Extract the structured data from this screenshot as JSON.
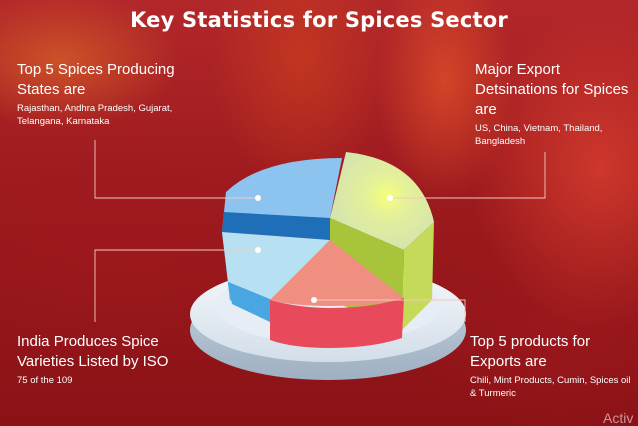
{
  "title": "Key Statistics for Spices Sector",
  "top_left": {
    "heading": "Top 5 Spices Producing States are",
    "detail": "Rajasthan, Andhra Pradesh, Gujarat, Telangana, Karnataka"
  },
  "top_right": {
    "heading": "Major Export Detsinations for Spices are",
    "detail": "US, China, Vietnam, Thailand, Bangladesh"
  },
  "bottom_left": {
    "heading": "India Produces Spice Varieties Listed by ISO",
    "detail": "75 of the 109"
  },
  "bottom_right": {
    "heading": "Top 5 products for Exports are",
    "detail": "Chili, Mint Products, Cumin, Spices oil & Turmeric"
  },
  "watermark": "Activ",
  "colors": {
    "slice_blue": "#8cc3ef",
    "slice_dark_blue": "#1f6fb8",
    "slice_light_blue": "#b7e0f2",
    "slice_lime": "#d9e86a",
    "slice_salmon": "#ef8f80",
    "base_plate": "#dce6ef"
  }
}
